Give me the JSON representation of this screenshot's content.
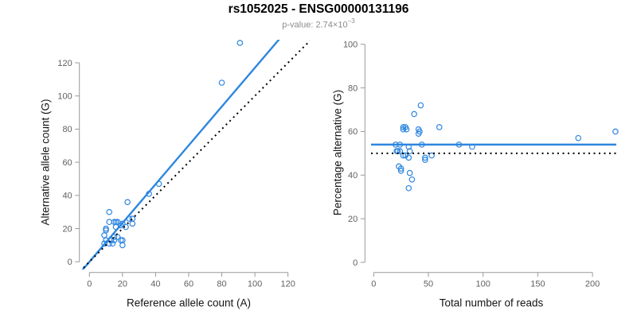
{
  "header": {
    "title": "rs1052025 - ENSG00000131196",
    "p_value_prefix": "p-value: ",
    "p_value_mantissa": "2.74",
    "p_value_times": "×10",
    "p_value_exponent": "−3"
  },
  "colors": {
    "accent_blue": "#2e86e0",
    "axis_line_gray": "#999999",
    "tick_label_gray": "#616161",
    "identity_black": "#000000",
    "subtitle_gray": "#8c8c8c"
  },
  "chart_data": [
    {
      "type": "scatter",
      "name": "alternative-vs-reference-allele-count",
      "xlabel": "Reference allele count (A)",
      "ylabel": "Alternative allele count (G)",
      "xticks": [
        0,
        20,
        40,
        60,
        80,
        100,
        120
      ],
      "yticks": [
        0,
        20,
        40,
        60,
        80,
        100,
        120
      ],
      "xlim": [
        0,
        125
      ],
      "ylim": [
        0,
        135
      ],
      "grid": false,
      "legend": false,
      "marker": "open-circle",
      "points": [
        [
          9,
          16
        ],
        [
          10,
          20
        ],
        [
          10,
          19
        ],
        [
          16,
          21
        ],
        [
          19,
          22
        ],
        [
          15,
          15
        ],
        [
          17,
          15
        ],
        [
          13,
          13
        ],
        [
          15,
          13
        ],
        [
          10,
          13
        ],
        [
          9,
          11
        ],
        [
          12,
          11
        ],
        [
          14,
          11
        ],
        [
          19,
          13
        ],
        [
          20,
          13
        ],
        [
          20,
          10
        ],
        [
          12,
          24
        ],
        [
          15,
          24
        ],
        [
          16,
          24
        ],
        [
          17,
          24
        ],
        [
          20,
          23
        ],
        [
          22,
          21
        ],
        [
          24,
          26
        ],
        [
          26,
          26
        ],
        [
          26,
          23
        ],
        [
          12,
          30
        ],
        [
          23,
          36
        ],
        [
          36,
          41
        ],
        [
          42,
          47
        ],
        [
          80,
          108
        ],
        [
          91,
          132
        ]
      ],
      "lines": [
        {
          "name": "fitted-ratio-line",
          "style": "solid",
          "color": "#2e86e0",
          "slope": 1.17,
          "intercept": 0
        },
        {
          "name": "identity-line",
          "style": "dotted",
          "color": "#000000",
          "slope": 1,
          "intercept": 0
        }
      ]
    },
    {
      "type": "scatter",
      "name": "percentage-alternative-vs-total-reads",
      "xlabel": "Total number of reads",
      "ylabel": "Percentage alternative (G)",
      "xticks": [
        0,
        50,
        100,
        150,
        200
      ],
      "yticks": [
        0,
        20,
        40,
        60,
        80,
        100
      ],
      "xlim": [
        0,
        222
      ],
      "ylim": [
        0,
        100
      ],
      "grid": false,
      "legend": false,
      "marker": "open-circle",
      "points": [
        [
          43,
          72
        ],
        [
          37,
          68
        ],
        [
          27,
          62
        ],
        [
          29,
          62
        ],
        [
          30,
          61
        ],
        [
          27,
          61
        ],
        [
          41,
          61
        ],
        [
          42,
          60
        ],
        [
          41,
          59
        ],
        [
          60,
          62
        ],
        [
          20,
          54
        ],
        [
          24,
          54
        ],
        [
          32,
          53
        ],
        [
          44,
          54
        ],
        [
          78,
          54
        ],
        [
          90,
          53
        ],
        [
          21,
          51
        ],
        [
          22,
          51
        ],
        [
          24,
          51
        ],
        [
          33,
          51
        ],
        [
          27,
          49
        ],
        [
          29,
          49
        ],
        [
          32,
          48
        ],
        [
          47,
          48
        ],
        [
          53,
          49
        ],
        [
          47,
          47
        ],
        [
          23,
          44
        ],
        [
          25,
          43
        ],
        [
          25,
          42
        ],
        [
          33,
          41
        ],
        [
          35,
          38
        ],
        [
          32,
          34
        ],
        [
          187,
          57
        ],
        [
          221,
          60
        ]
      ],
      "hlines": [
        {
          "name": "mean-percentage-line",
          "style": "solid",
          "color": "#2e86e0",
          "value": 54
        },
        {
          "name": "null-fifty-percent-line",
          "style": "dotted",
          "color": "#000000",
          "value": 50
        }
      ]
    }
  ]
}
